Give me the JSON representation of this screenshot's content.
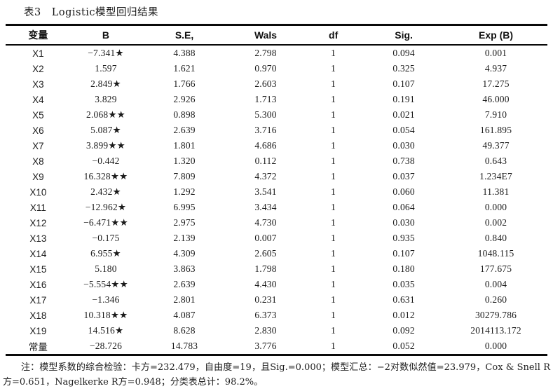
{
  "title": "表3　Logistic模型回归结果",
  "table": {
    "headers": [
      "变量",
      "B",
      "S.E,",
      "Wals",
      "df",
      "Sig.",
      "Exp (B)"
    ],
    "rows": [
      [
        "X1",
        "−7.341★",
        "4.388",
        "2.798",
        "1",
        "0.094",
        "0.001"
      ],
      [
        "X2",
        "1.597",
        "1.621",
        "0.970",
        "1",
        "0.325",
        "4.937"
      ],
      [
        "X3",
        "2.849★",
        "1.766",
        "2.603",
        "1",
        "0.107",
        "17.275"
      ],
      [
        "X4",
        "3.829",
        "2.926",
        "1.713",
        "1",
        "0.191",
        "46.000"
      ],
      [
        "X5",
        "2.068★★",
        "0.898",
        "5.300",
        "1",
        "0.021",
        "7.910"
      ],
      [
        "X6",
        "5.087★",
        "2.639",
        "3.716",
        "1",
        "0.054",
        "161.895"
      ],
      [
        "X7",
        "3.899★★",
        "1.801",
        "4.686",
        "1",
        "0.030",
        "49.377"
      ],
      [
        "X8",
        "−0.442",
        "1.320",
        "0.112",
        "1",
        "0.738",
        "0.643"
      ],
      [
        "X9",
        "16.328★★",
        "7.809",
        "4.372",
        "1",
        "0.037",
        "1.234E7"
      ],
      [
        "X10",
        "2.432★",
        "1.292",
        "3.541",
        "1",
        "0.060",
        "11.381"
      ],
      [
        "X11",
        "−12.962★",
        "6.995",
        "3.434",
        "1",
        "0.064",
        "0.000"
      ],
      [
        "X12",
        "−6.471★★",
        "2.975",
        "4.730",
        "1",
        "0.030",
        "0.002"
      ],
      [
        "X13",
        "−0.175",
        "2.139",
        "0.007",
        "1",
        "0.935",
        "0.840"
      ],
      [
        "X14",
        "6.955★",
        "4.309",
        "2.605",
        "1",
        "0.107",
        "1048.115"
      ],
      [
        "X15",
        "5.180",
        "3.863",
        "1.798",
        "1",
        "0.180",
        "177.675"
      ],
      [
        "X16",
        "−5.554★★",
        "2.639",
        "4.430",
        "1",
        "0.035",
        "0.004"
      ],
      [
        "X17",
        "−1.346",
        "2.801",
        "0.231",
        "1",
        "0.631",
        "0.260"
      ],
      [
        "X18",
        "10.318★★",
        "4.087",
        "6.373",
        "1",
        "0.012",
        "30279.786"
      ],
      [
        "X19",
        "14.516★",
        "8.628",
        "2.830",
        "1",
        "0.092",
        "2014113.172"
      ],
      [
        "常量",
        "−28.726",
        "14.783",
        "3.776",
        "1",
        "0.052",
        "0.000"
      ]
    ]
  },
  "footnote": "注：模型系数的综合检验：卡方=232.479，自由度=19，且Sig.=0.000；模型汇总：−2对数似然值=23.979，Cox & Snell R方=0.651，Nagelkerke R方=0.948；分类表总计：98.2%。"
}
